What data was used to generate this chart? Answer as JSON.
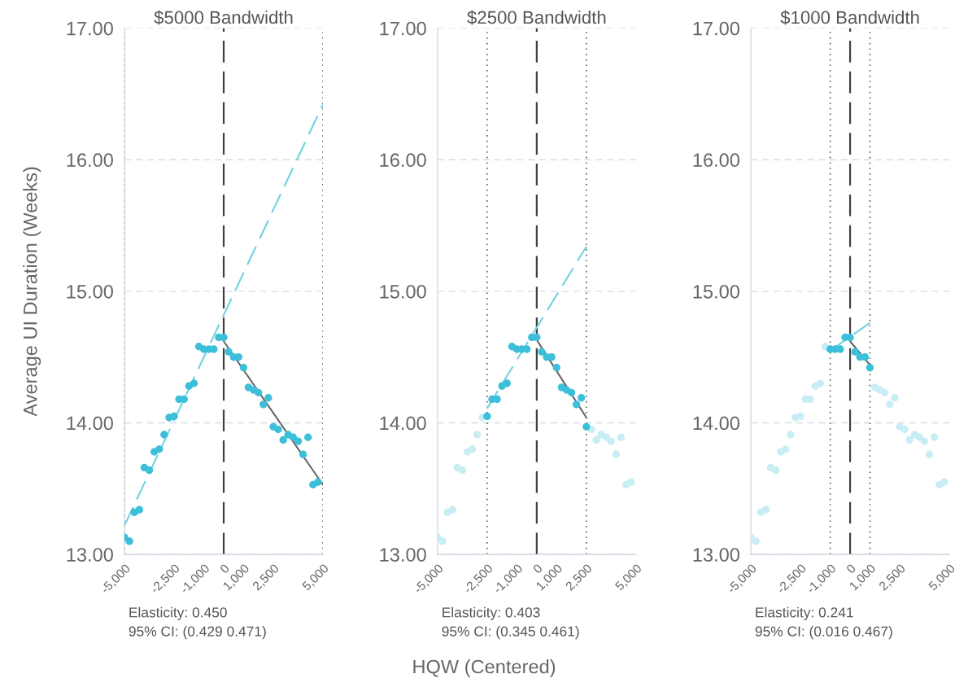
{
  "chart_data": [
    {
      "type": "scatter",
      "title": "$5000 Bandwidth",
      "ylabel": "Average UI Duration (Weeks)",
      "xlim": [
        -5000,
        5000
      ],
      "ylim": [
        13,
        17
      ],
      "grid": "y",
      "xticks": [
        {
          "value": -5000,
          "label": "-5,000"
        },
        {
          "value": -2500,
          "label": "-2,500"
        },
        {
          "value": -1000,
          "label": "-1,000"
        },
        0,
        {
          "value": 1000,
          "label": "1,000"
        },
        {
          "value": 2500,
          "label": "2,500"
        },
        {
          "value": 5000,
          "label": "5,000"
        }
      ],
      "yticks": [
        {
          "value": 13,
          "label": "13.00"
        },
        {
          "value": 14,
          "label": "14.00"
        },
        {
          "value": 15,
          "label": "15.00"
        },
        {
          "value": 16,
          "label": "16.00"
        },
        {
          "value": 17,
          "label": "17.00"
        }
      ],
      "ref_lines": [
        {
          "axis": "x",
          "value": 0,
          "line_style": "dashed",
          "color": "#404040"
        },
        {
          "axis": "x",
          "value": -5000,
          "line_style": "dotted",
          "color": "#606060"
        },
        {
          "axis": "x",
          "value": 5000,
          "line_style": "dotted",
          "color": "#606060"
        }
      ],
      "series": [
        {
          "color": "#3cbfd8",
          "x": [
            -5000,
            -4750,
            -4500,
            -4250,
            -4000,
            -3750,
            -3500,
            -3250,
            -3000,
            -2750,
            -2500,
            -2250,
            -2000,
            -1750,
            -1500,
            -1250,
            -1000,
            -750,
            -500,
            -250,
            0,
            250,
            500,
            750,
            1000,
            1250,
            1500,
            1750,
            2000,
            2250,
            2500,
            2750,
            3000,
            3250,
            3500,
            3750,
            4000,
            4250,
            4500,
            4750
          ],
          "values": [
            13.13,
            13.1,
            13.32,
            13.34,
            13.66,
            13.64,
            13.78,
            13.8,
            13.91,
            14.04,
            14.05,
            14.18,
            14.18,
            14.28,
            14.3,
            14.58,
            14.56,
            14.56,
            14.56,
            14.65,
            14.65,
            14.54,
            14.5,
            14.5,
            14.42,
            14.27,
            14.25,
            14.23,
            14.14,
            14.19,
            13.97,
            13.95,
            13.87,
            13.91,
            13.89,
            13.86,
            13.76,
            13.89,
            13.53,
            13.55
          ]
        },
        {
          "type": "line",
          "line_style": "dashed",
          "color": "#6fd1e2",
          "x": [
            -5000,
            5000
          ],
          "values": [
            13.22,
            16.42
          ]
        },
        {
          "type": "line",
          "line_style": "solid",
          "color": "#666666",
          "x": [
            0,
            5000
          ],
          "values": [
            14.62,
            13.53
          ]
        }
      ],
      "annotations": [
        "Elasticity: 0.450",
        "95% CI: (0.429 0.471)"
      ]
    },
    {
      "type": "scatter",
      "title": "$2500 Bandwidth",
      "xlabel": "HQW (Centered)",
      "xlim": [
        -5000,
        5000
      ],
      "ylim": [
        13,
        17
      ],
      "grid": "y",
      "xticks": [
        {
          "value": -5000,
          "label": "-5,000"
        },
        {
          "value": -2500,
          "label": "-2,500"
        },
        {
          "value": -1000,
          "label": "-1,000"
        },
        0,
        {
          "value": 1000,
          "label": "1,000"
        },
        {
          "value": 2500,
          "label": "2,500"
        },
        {
          "value": 5000,
          "label": "5,000"
        }
      ],
      "yticks": [
        {
          "value": 13,
          "label": "13.00"
        },
        {
          "value": 14,
          "label": "14.00"
        },
        {
          "value": 15,
          "label": "15.00"
        },
        {
          "value": 16,
          "label": "16.00"
        },
        {
          "value": 17,
          "label": "17.00"
        }
      ],
      "ref_lines": [
        {
          "axis": "x",
          "value": 0,
          "line_style": "dashed",
          "color": "#404040"
        },
        {
          "axis": "x",
          "value": -2500,
          "line_style": "dotted",
          "color": "#606060"
        },
        {
          "axis": "x",
          "value": 2500,
          "line_style": "dotted",
          "color": "#606060"
        }
      ],
      "series": [
        {
          "color": "#c9edf4",
          "x": [
            -5000,
            -4750,
            -4500,
            -4250,
            -4000,
            -3750,
            -3500,
            -3250,
            -3000,
            -2750,
            2750,
            3000,
            3250,
            3500,
            3750,
            4000,
            4250,
            4500,
            4750
          ],
          "values": [
            13.13,
            13.1,
            13.32,
            13.34,
            13.66,
            13.64,
            13.78,
            13.8,
            13.91,
            14.04,
            13.95,
            13.87,
            13.91,
            13.89,
            13.86,
            13.76,
            13.89,
            13.53,
            13.55
          ]
        },
        {
          "color": "#3cbfd8",
          "x": [
            -2500,
            -2250,
            -2000,
            -1750,
            -1500,
            -1250,
            -1000,
            -750,
            -500,
            -250,
            0,
            250,
            500,
            750,
            1000,
            1250,
            1500,
            1750,
            2000,
            2250,
            2500
          ],
          "values": [
            14.05,
            14.18,
            14.18,
            14.28,
            14.3,
            14.58,
            14.56,
            14.56,
            14.56,
            14.65,
            14.65,
            14.54,
            14.5,
            14.5,
            14.42,
            14.27,
            14.25,
            14.23,
            14.14,
            14.19,
            13.97
          ]
        },
        {
          "type": "line",
          "line_style": "dashed",
          "color": "#6fd1e2",
          "x": [
            -2500,
            2500
          ],
          "values": [
            14.11,
            15.34
          ]
        },
        {
          "type": "line",
          "line_style": "solid",
          "color": "#666666",
          "x": [
            0,
            2500
          ],
          "values": [
            14.63,
            14.04
          ]
        }
      ],
      "annotations": [
        "Elasticity: 0.403",
        "95% CI: (0.345 0.461)"
      ]
    },
    {
      "type": "scatter",
      "title": "$1000 Bandwidth",
      "xlim": [
        -5000,
        5000
      ],
      "ylim": [
        13,
        17
      ],
      "grid": "y",
      "xticks": [
        {
          "value": -5000,
          "label": "-5,000"
        },
        {
          "value": -2500,
          "label": "-2,500"
        },
        {
          "value": -1000,
          "label": "-1,000"
        },
        0,
        {
          "value": 1000,
          "label": "1,000"
        },
        {
          "value": 2500,
          "label": "2,500"
        },
        {
          "value": 5000,
          "label": "5,000"
        }
      ],
      "yticks": [
        {
          "value": 13,
          "label": "13.00"
        },
        {
          "value": 14,
          "label": "14.00"
        },
        {
          "value": 15,
          "label": "15.00"
        },
        {
          "value": 16,
          "label": "16.00"
        },
        {
          "value": 17,
          "label": "17.00"
        }
      ],
      "ref_lines": [
        {
          "axis": "x",
          "value": 0,
          "line_style": "dashed",
          "color": "#404040"
        },
        {
          "axis": "x",
          "value": -1000,
          "line_style": "dotted",
          "color": "#606060"
        },
        {
          "axis": "x",
          "value": 1000,
          "line_style": "dotted",
          "color": "#606060"
        }
      ],
      "series": [
        {
          "color": "#c9edf4",
          "x": [
            -5000,
            -4750,
            -4500,
            -4250,
            -4000,
            -3750,
            -3500,
            -3250,
            -3000,
            -2750,
            -2500,
            -2250,
            -2000,
            -1750,
            -1500,
            -1250,
            1250,
            1500,
            1750,
            2000,
            2250,
            2500,
            2750,
            3000,
            3250,
            3500,
            3750,
            4000,
            4250,
            4500,
            4750
          ],
          "values": [
            13.13,
            13.1,
            13.32,
            13.34,
            13.66,
            13.64,
            13.78,
            13.8,
            13.91,
            14.04,
            14.05,
            14.18,
            14.18,
            14.28,
            14.3,
            14.58,
            14.27,
            14.25,
            14.23,
            14.14,
            14.19,
            13.97,
            13.95,
            13.87,
            13.91,
            13.89,
            13.86,
            13.76,
            13.89,
            13.53,
            13.55
          ]
        },
        {
          "color": "#3cbfd8",
          "x": [
            -1000,
            -750,
            -500,
            -250,
            0,
            250,
            500,
            750,
            1000
          ],
          "values": [
            14.56,
            14.56,
            14.56,
            14.65,
            14.65,
            14.54,
            14.5,
            14.5,
            14.42
          ]
        },
        {
          "type": "line",
          "line_style": "dashed",
          "color": "#6fd1e2",
          "x": [
            -1000,
            1000
          ],
          "values": [
            14.55,
            14.76
          ]
        },
        {
          "type": "line",
          "line_style": "solid",
          "color": "#666666",
          "x": [
            0,
            1000
          ],
          "values": [
            14.62,
            14.44
          ]
        }
      ],
      "annotations": [
        "Elasticity: 0.241",
        "95% CI: (0.016 0.467)"
      ]
    }
  ]
}
